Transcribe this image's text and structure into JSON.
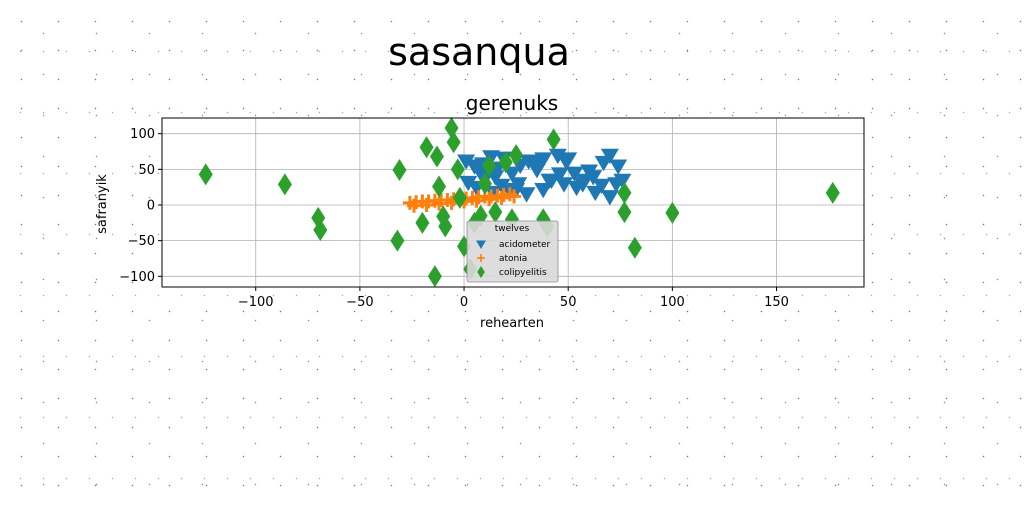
{
  "chart_data": {
    "type": "scatter",
    "suptitle": "sasanqua",
    "title": "gerenuks",
    "xlabel": "rehearten",
    "ylabel": "safranyik",
    "xlim": [
      -145,
      192
    ],
    "ylim": [
      -115,
      122
    ],
    "xticks": [
      -100,
      -50,
      0,
      50,
      100,
      150
    ],
    "xtick_labels": [
      "−100",
      "−50",
      "0",
      "50",
      "100",
      "150"
    ],
    "yticks": [
      -100,
      -50,
      0,
      50,
      100
    ],
    "ytick_labels": [
      "−100",
      "−50",
      "0",
      "50",
      "100"
    ],
    "grid": true,
    "legend": {
      "title": "twelves",
      "placement": "lower-center"
    },
    "series": [
      {
        "name": "acidometer",
        "marker": "triangle-down",
        "color": "#1f77b4",
        "x": [
          1,
          5,
          9,
          13,
          16,
          19,
          23,
          27,
          31,
          35,
          38,
          41,
          45,
          49,
          53,
          57,
          60,
          63,
          67,
          70,
          73,
          76,
          2,
          6,
          10,
          14,
          18,
          22,
          26,
          30,
          34,
          38,
          42,
          46,
          50,
          54,
          58,
          62,
          66,
          70,
          74,
          8,
          15,
          25,
          37,
          48
        ],
        "y": [
          62,
          55,
          58,
          68,
          52,
          66,
          45,
          56,
          62,
          50,
          65,
          35,
          70,
          62,
          45,
          30,
          48,
          18,
          60,
          12,
          30,
          35,
          32,
          25,
          38,
          18,
          28,
          20,
          30,
          16,
          58,
          22,
          35,
          44,
          65,
          25,
          35,
          40,
          28,
          70,
          55,
          45,
          40,
          22,
          60,
          30
        ]
      },
      {
        "name": "atonia",
        "marker": "plus",
        "color": "#ff7f0e",
        "x": [
          -26,
          -23,
          -20,
          -17,
          -14,
          -11,
          -8,
          -5,
          -2,
          1,
          4,
          7,
          10,
          13,
          16,
          19,
          22,
          -24,
          -18,
          -12,
          -6,
          0,
          6,
          12,
          18,
          24
        ],
        "y": [
          3,
          4,
          5,
          5,
          6,
          7,
          7,
          8,
          9,
          9,
          10,
          11,
          12,
          12,
          13,
          14,
          15,
          -1,
          0,
          2,
          3,
          5,
          6,
          8,
          10,
          12
        ]
      },
      {
        "name": "colipyelitis",
        "marker": "thin-diamond",
        "color": "#2ca02c",
        "x": [
          -124,
          -86,
          -70,
          -69,
          -32,
          -31,
          -20,
          -18,
          -14,
          -13,
          -12,
          -10,
          -9,
          -6,
          -5,
          -3,
          -2,
          0,
          3,
          5,
          8,
          10,
          12,
          15,
          20,
          23,
          25,
          38,
          40,
          43,
          77,
          77,
          82,
          100,
          177
        ],
        "y": [
          43,
          29,
          -18,
          -35,
          -50,
          49,
          -25,
          81,
          -100,
          68,
          26,
          -16,
          -30,
          108,
          88,
          50,
          10,
          -58,
          -90,
          -25,
          -15,
          30,
          55,
          -10,
          60,
          -20,
          70,
          -20,
          -30,
          92,
          17,
          -10,
          -60,
          -11,
          17
        ]
      }
    ]
  }
}
